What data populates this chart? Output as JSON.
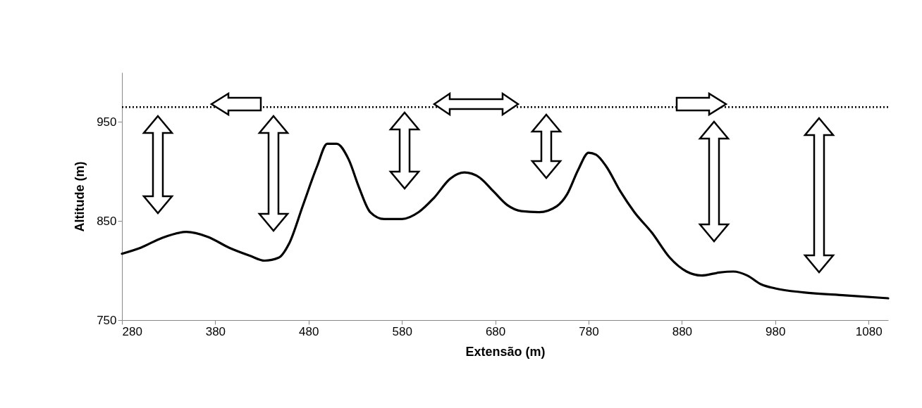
{
  "chart_data": {
    "type": "line",
    "xlabel": "Extensão (m)",
    "ylabel": "Altitude (m)",
    "x": [
      280,
      300,
      323,
      349,
      372,
      395,
      417,
      433,
      448,
      459,
      474,
      489,
      500,
      510,
      523,
      534,
      546,
      561,
      580,
      598,
      614,
      632,
      647,
      663,
      678,
      693,
      708,
      727,
      746,
      757,
      769,
      780,
      788,
      799,
      814,
      829,
      848,
      867,
      885,
      901,
      920,
      935,
      950,
      965,
      980,
      1010,
      1055,
      1101
    ],
    "series": [
      {
        "color": "#000000",
        "values": [
          817,
          823,
          833,
          839,
          834,
          823,
          815,
          810,
          813,
          827,
          866,
          905,
          928,
          928,
          912,
          884,
          859,
          852,
          852,
          859,
          873,
          893,
          899,
          894,
          880,
          866,
          860,
          859,
          865,
          877,
          902,
          919,
          917,
          905,
          880,
          859,
          838,
          813,
          799,
          795,
          798,
          799,
          795,
          786,
          782,
          778,
          775,
          772
        ]
      }
    ],
    "xlim": [
      280,
      1101
    ],
    "ylim": [
      750,
      1000
    ],
    "xticks": [
      280,
      380,
      480,
      580,
      680,
      780,
      880,
      980,
      1080
    ],
    "yticks": [
      750,
      850,
      950
    ],
    "grid": false,
    "ref_lines": [
      {
        "axis": "y",
        "value": 965,
        "line_style": "dotted",
        "color": "#000000"
      }
    ]
  }
}
